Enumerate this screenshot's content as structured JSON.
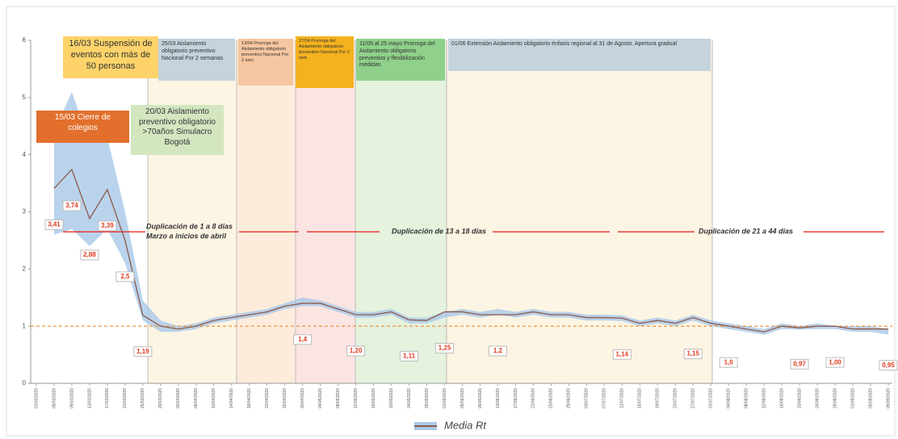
{
  "chart_data": {
    "type": "line",
    "categories": [
      "01/03/2020",
      "05/03/2020",
      "09/03/2020",
      "13/03/2020",
      "17/03/2020",
      "21/03/2020",
      "25/03/2020",
      "29/03/2020",
      "02/04/2020",
      "06/04/2020",
      "10/04/2020",
      "14/04/2020",
      "18/04/2020",
      "22/04/2020",
      "26/04/2020",
      "30/04/2020",
      "04/05/2020",
      "08/05/2020",
      "12/05/2020",
      "16/05/2020",
      "20/05/2020",
      "24/05/2020",
      "28/05/2020",
      "01/06/2020",
      "05/06/2020",
      "09/06/2020",
      "13/06/2020",
      "17/06/2020",
      "21/06/2020",
      "25/06/2020",
      "29/06/2020",
      "03/07/2020",
      "07/07/2020",
      "11/07/2020",
      "15/07/2020",
      "19/07/2020",
      "23/07/2020",
      "27/07/2020",
      "31/07/2020",
      "04/08/2020",
      "08/08/2020",
      "12/08/2020",
      "16/08/2020",
      "20/08/2020",
      "24/08/2020",
      "28/08/2020",
      "01/09/2020",
      "05/09/2020",
      "09/09/2020"
    ],
    "series": [
      {
        "name": "Media Rt",
        "color": "#8b5a4a",
        "values": [
          null,
          3.41,
          3.74,
          2.88,
          3.39,
          2.5,
          1.19,
          1.0,
          0.95,
          1.0,
          1.1,
          1.15,
          1.2,
          1.25,
          1.35,
          1.4,
          1.4,
          1.3,
          1.2,
          1.2,
          1.25,
          1.11,
          1.1,
          1.25,
          1.25,
          1.2,
          1.2,
          1.2,
          1.25,
          1.2,
          1.2,
          1.15,
          1.15,
          1.14,
          1.05,
          1.1,
          1.05,
          1.15,
          1.05,
          1.0,
          0.95,
          0.9,
          1.0,
          0.97,
          1.0,
          1.0,
          0.95,
          0.95,
          0.95
        ],
        "value_labels": [
          null,
          "3,41",
          "3,74",
          "2,88",
          "3,39",
          "2,5",
          "1,19",
          null,
          null,
          null,
          null,
          null,
          null,
          null,
          null,
          "1,4",
          null,
          null,
          "1,20",
          null,
          null,
          "1,11",
          null,
          "1,25",
          null,
          null,
          "1,2",
          null,
          null,
          null,
          null,
          null,
          null,
          "1,14",
          null,
          null,
          null,
          "1,15",
          null,
          "1,0",
          null,
          null,
          null,
          "0,97",
          null,
          "1,00",
          null,
          null,
          "0,95"
        ]
      }
    ],
    "band": {
      "color": "#a9c8e8",
      "upper": [
        null,
        4.4,
        5.1,
        4.2,
        4.3,
        3.0,
        1.45,
        1.1,
        1.0,
        1.05,
        1.15,
        1.2,
        1.25,
        1.3,
        1.4,
        1.5,
        1.45,
        1.35,
        1.25,
        1.25,
        1.3,
        1.15,
        1.15,
        1.25,
        1.3,
        1.25,
        1.3,
        1.25,
        1.3,
        1.25,
        1.25,
        1.2,
        1.2,
        1.19,
        1.1,
        1.15,
        1.1,
        1.2,
        1.1,
        1.05,
        1.0,
        0.95,
        1.05,
        1.0,
        1.05,
        1.0,
        1.0,
        1.0,
        0.95
      ],
      "lower": [
        null,
        2.6,
        2.7,
        2.4,
        2.7,
        2.1,
        1.1,
        0.9,
        0.9,
        0.95,
        1.05,
        1.1,
        1.15,
        1.2,
        1.3,
        1.35,
        1.35,
        1.25,
        1.15,
        1.15,
        1.2,
        1.05,
        1.05,
        1.15,
        1.2,
        1.15,
        1.2,
        1.15,
        1.2,
        1.15,
        1.15,
        1.1,
        1.1,
        1.09,
        1.0,
        1.05,
        1.0,
        1.1,
        1.0,
        0.95,
        0.9,
        0.85,
        0.95,
        0.94,
        0.95,
        0.95,
        0.9,
        0.9,
        0.85
      ]
    },
    "ylim": [
      0,
      6
    ],
    "yticks": [
      0,
      1,
      2,
      3,
      4,
      5,
      6
    ],
    "reference_line": {
      "value": 1,
      "color": "#f08a2c"
    },
    "doubling": {
      "value": 2.65,
      "color": "#e8322a",
      "texts": [
        "Duplicación de 1 a 8 días\nMarzo a inicios de abril",
        "Duplicación de 13 a 18 días",
        "Duplicación de 21  a 44 días"
      ]
    },
    "annotations": [
      {
        "text": "16/03 Suspensión de eventos con más de 50 personas",
        "color": "#fdd36a"
      },
      {
        "text": "15/03 Cierre de colegios",
        "color": "#e2702c"
      },
      {
        "text": "20/03 Aislamiento preventivo obligatorio >70años Simulacro Bogotá",
        "color": "#d3e6c0"
      },
      {
        "text": "25/03 Aislamiento obligatorio preventivo Nacional Por 2 semanas",
        "color": "#c4d3dc"
      },
      {
        "text": "13/04 Prorroga del Aislamiento obligatorio preventivo Nacional Por 2 sem",
        "color": "#f6c6a0"
      },
      {
        "text": "27/04 Prorroga del Aislamiento obligatorio preventivo Nacional Por 2 sem",
        "color": "#f5b21f"
      },
      {
        "text": "11/05 al 25 mayo Prorroga del Aislamiento obligatorio preventivo y flexibilización medidas",
        "color": "#8fd08a"
      },
      {
        "text": "01/06 Extensión Aislamiento obligatorio énfasis regional al 31 de Agosto. Apertura gradual",
        "color": "#c4d3dc"
      }
    ]
  }
}
